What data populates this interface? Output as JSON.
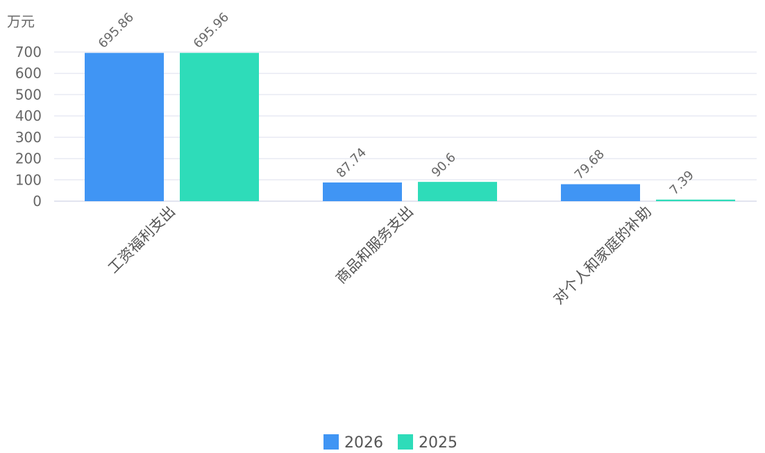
{
  "chart_data": {
    "type": "bar",
    "ylabel": "万元",
    "categories": [
      "工资福利支出",
      "商品和服务支出",
      "对个人和家庭的补助"
    ],
    "series": [
      {
        "name": "2026",
        "color": "#4095f4",
        "values": [
          695.86,
          87.74,
          79.68
        ],
        "labels": [
          "695.86",
          "87.74",
          "79.68"
        ]
      },
      {
        "name": "2025",
        "color": "#2edcb9",
        "values": [
          695.96,
          90.6,
          7.39
        ],
        "labels": [
          "695.96",
          "90.6",
          "7.39"
        ]
      }
    ],
    "ylim": [
      0,
      700
    ],
    "yticks": [
      0,
      100,
      200,
      300,
      400,
      500,
      600,
      700
    ],
    "grid": true,
    "legend": "bottom-center"
  }
}
